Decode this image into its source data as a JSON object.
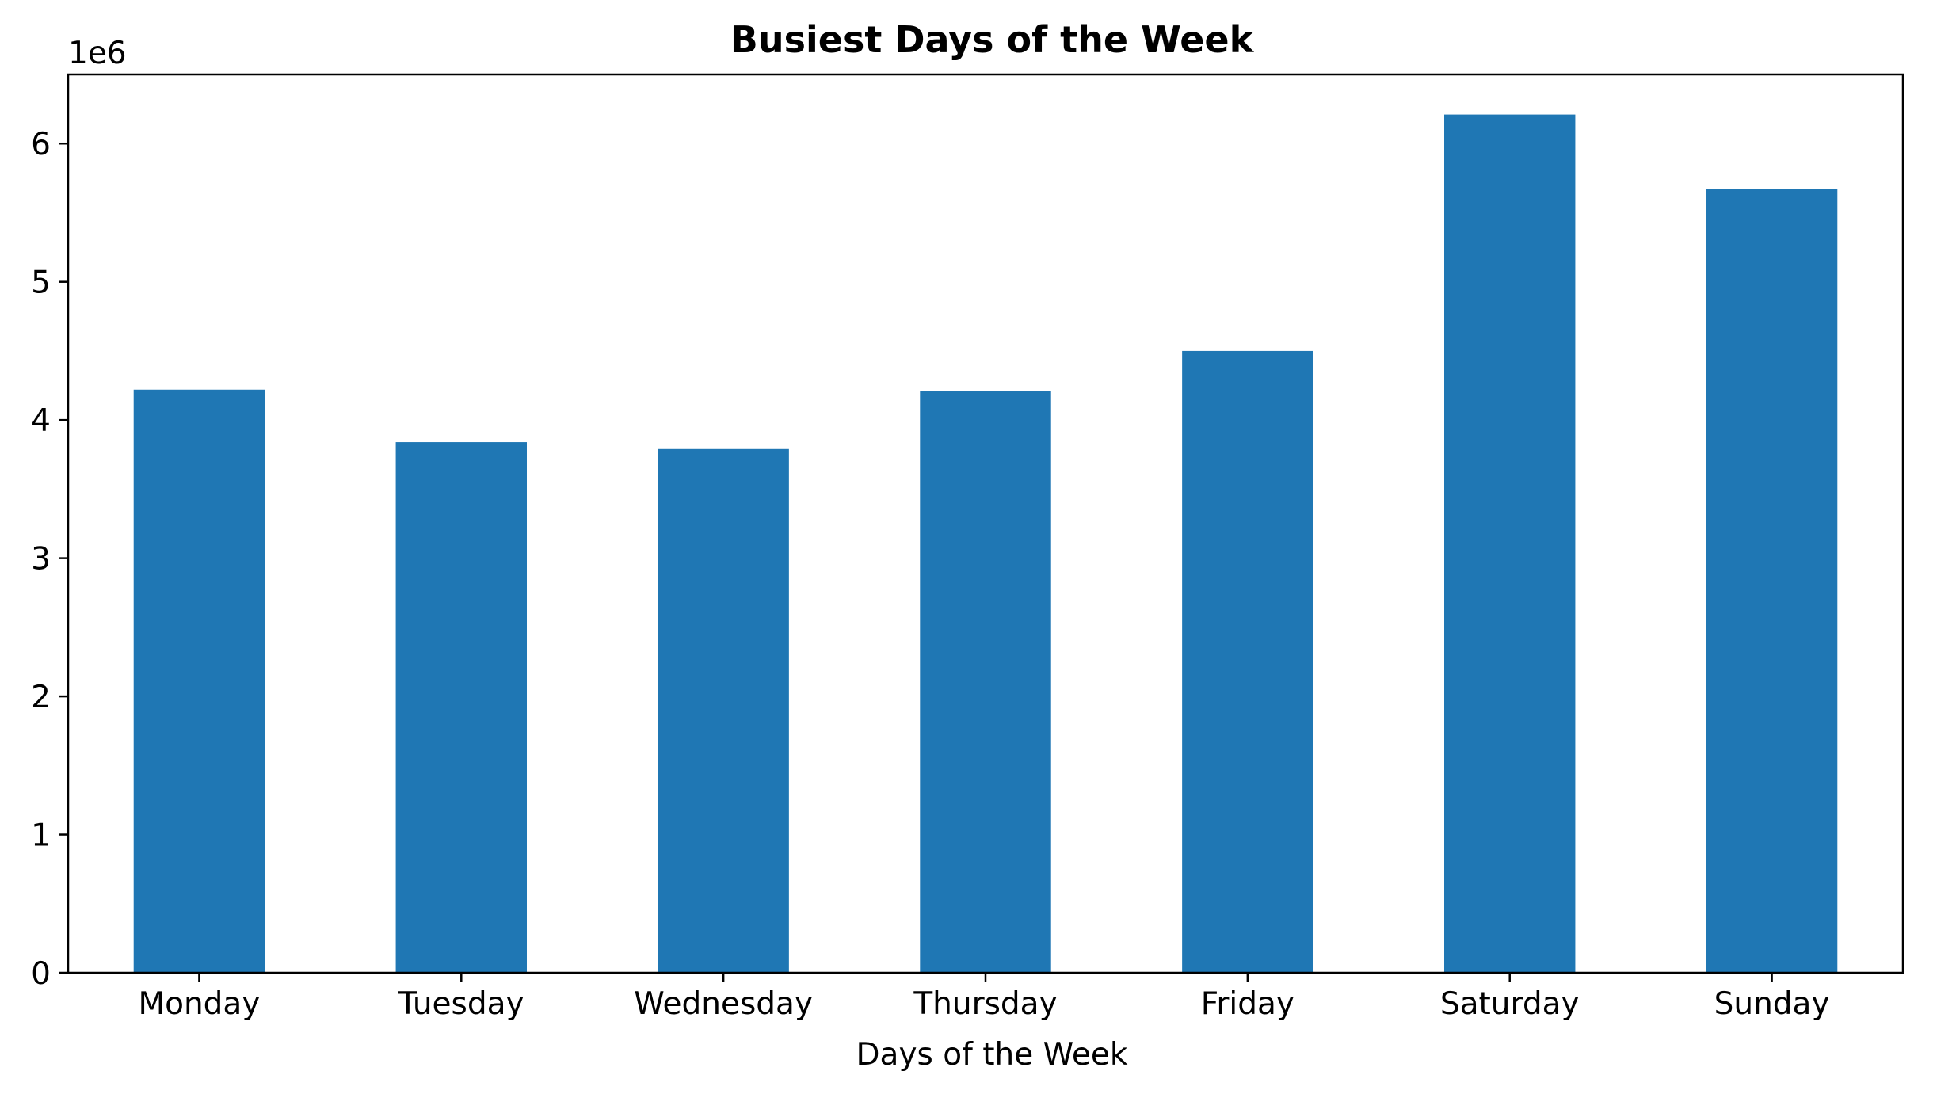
{
  "chart_data": {
    "type": "bar",
    "title": "Busiest Days of the Week",
    "xlabel": "Days of the Week",
    "ylabel": "",
    "y_offset_label": "1e6",
    "categories": [
      "Monday",
      "Tuesday",
      "Wednesday",
      "Thursday",
      "Friday",
      "Saturday",
      "Sunday"
    ],
    "values": [
      4220000,
      3840000,
      3790000,
      4210000,
      4500000,
      6210000,
      5670000
    ],
    "ylim": [
      0,
      6500000
    ],
    "yticks": [
      0,
      1000000,
      2000000,
      3000000,
      4000000,
      5000000,
      6000000
    ],
    "ytick_labels": [
      "0",
      "1",
      "2",
      "3",
      "4",
      "5",
      "6"
    ],
    "bar_color": "#1f77b4",
    "grid": false,
    "legend": "none"
  }
}
